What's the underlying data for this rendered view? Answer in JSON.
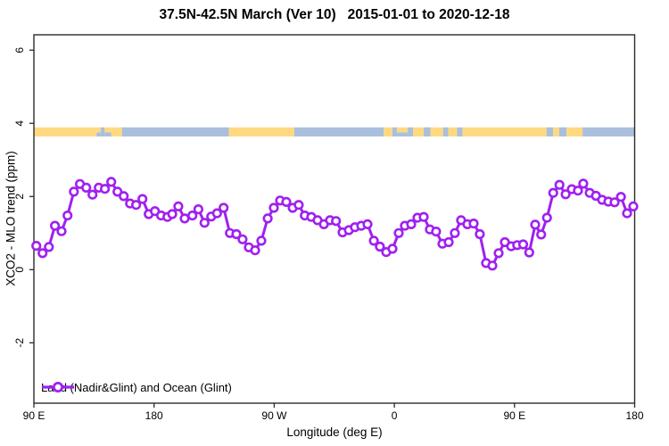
{
  "title": "37.5N-42.5N March (Ver 10)   2015-01-01 to 2020-12-18",
  "chart_data": {
    "type": "line",
    "title": "37.5N-42.5N March (Ver 10)   2015-01-01 to 2020-12-18",
    "xlabel": "Longitude (deg E)",
    "ylabel": "XCO2 - MLO trend (ppm)",
    "xlim": [
      90,
      540
    ],
    "ylim": [
      -3.65,
      6.42
    ],
    "grid": false,
    "legend_position": "bottom-left",
    "legend_label": "Land (Nadir&Glint) and Ocean (Glint)",
    "colors": {
      "series": "#A020F0",
      "marker_fill": "#ffffff",
      "land": "#FFD980",
      "ocean": "#A9BFDC",
      "frame": "#2b2b2b",
      "text": "#000000"
    },
    "x_ticks": [
      {
        "lon": 90,
        "label": "90 E"
      },
      {
        "lon": 180,
        "label": "180"
      },
      {
        "lon": 270,
        "label": "90 W"
      },
      {
        "lon": 360,
        "label": "0"
      },
      {
        "lon": 450,
        "label": "90 E"
      },
      {
        "lon": 540,
        "label": "180"
      }
    ],
    "y_ticks": [
      {
        "value": -2,
        "label": "-2"
      },
      {
        "value": 0,
        "label": "0"
      },
      {
        "value": 2,
        "label": "2"
      },
      {
        "value": 4,
        "label": "4"
      },
      {
        "value": 6,
        "label": "6"
      }
    ],
    "map_band": {
      "value_range": [
        3.64,
        3.89
      ],
      "segments": [
        [
          90,
          137,
          "land"
        ],
        [
          137,
          140,
          "mix"
        ],
        [
          140,
          143,
          "ocean"
        ],
        [
          143,
          148,
          "mix"
        ],
        [
          148,
          156,
          "land"
        ],
        [
          156,
          236,
          "ocean"
        ],
        [
          236,
          285,
          "land"
        ],
        [
          285,
          352,
          "ocean"
        ],
        [
          352,
          358.5,
          "land"
        ],
        [
          358.5,
          362,
          "ocean"
        ],
        [
          362,
          370,
          "mix"
        ],
        [
          370,
          374,
          "ocean"
        ],
        [
          374,
          382,
          "land"
        ],
        [
          382,
          387,
          "ocean"
        ],
        [
          387,
          396.5,
          "land"
        ],
        [
          396.5,
          400.5,
          "ocean"
        ],
        [
          400.5,
          407,
          "land"
        ],
        [
          407,
          411,
          "ocean"
        ],
        [
          411,
          474,
          "land"
        ],
        [
          474,
          479,
          "ocean"
        ],
        [
          479,
          483.5,
          "land"
        ],
        [
          483.5,
          489,
          "ocean"
        ],
        [
          489,
          501,
          "land"
        ],
        [
          501,
          540,
          "ocean"
        ]
      ]
    },
    "series": [
      {
        "name": "Land (Nadir&Glint) and Ocean (Glint)",
        "points": [
          [
            91.8,
            0.65
          ],
          [
            96.5,
            0.45
          ],
          [
            101.2,
            0.62
          ],
          [
            105.8,
            1.2
          ],
          [
            110.7,
            1.05
          ],
          [
            115.2,
            1.48
          ],
          [
            119.9,
            2.13
          ],
          [
            124.5,
            2.34
          ],
          [
            129.2,
            2.24
          ],
          [
            133.9,
            2.05
          ],
          [
            138.6,
            2.24
          ],
          [
            143.2,
            2.21
          ],
          [
            147.9,
            2.4
          ],
          [
            152.6,
            2.13
          ],
          [
            157.3,
            2.01
          ],
          [
            162.0,
            1.81
          ],
          [
            166.6,
            1.77
          ],
          [
            171.3,
            1.93
          ],
          [
            176.0,
            1.52
          ],
          [
            180.7,
            1.6
          ],
          [
            185.3,
            1.48
          ],
          [
            190.0,
            1.44
          ],
          [
            193.6,
            1.52
          ],
          [
            198.2,
            1.73
          ],
          [
            202.9,
            1.4
          ],
          [
            208.7,
            1.48
          ],
          [
            213.2,
            1.65
          ],
          [
            217.8,
            1.28
          ],
          [
            222.8,
            1.45
          ],
          [
            227.2,
            1.54
          ],
          [
            232.1,
            1.69
          ],
          [
            236.8,
            1.0
          ],
          [
            241.7,
            0.97
          ],
          [
            246.3,
            0.83
          ],
          [
            251.0,
            0.61
          ],
          [
            255.7,
            0.53
          ],
          [
            260.4,
            0.79
          ],
          [
            265.1,
            1.4
          ],
          [
            269.7,
            1.69
          ],
          [
            274.4,
            1.89
          ],
          [
            279.1,
            1.85
          ],
          [
            283.8,
            1.69
          ],
          [
            288.4,
            1.77
          ],
          [
            292.9,
            1.48
          ],
          [
            297.8,
            1.44
          ],
          [
            302.5,
            1.35
          ],
          [
            307.2,
            1.24
          ],
          [
            311.8,
            1.35
          ],
          [
            316.3,
            1.33
          ],
          [
            321.2,
            1.02
          ],
          [
            325.9,
            1.08
          ],
          [
            330.5,
            1.16
          ],
          [
            335.2,
            1.2
          ],
          [
            339.9,
            1.24
          ],
          [
            344.6,
            0.79
          ],
          [
            349.2,
            0.63
          ],
          [
            353.9,
            0.48
          ],
          [
            358.6,
            0.57
          ],
          [
            363.3,
            1.0
          ],
          [
            367.9,
            1.2
          ],
          [
            372.6,
            1.24
          ],
          [
            377.3,
            1.42
          ],
          [
            382.0,
            1.44
          ],
          [
            386.6,
            1.1
          ],
          [
            391.3,
            1.04
          ],
          [
            396.0,
            0.71
          ],
          [
            400.7,
            0.75
          ],
          [
            405.3,
            1.0
          ],
          [
            410.0,
            1.35
          ],
          [
            414.7,
            1.24
          ],
          [
            419.4,
            1.26
          ],
          [
            424.0,
            0.97
          ],
          [
            428.7,
            0.18
          ],
          [
            433.4,
            0.11
          ],
          [
            438.1,
            0.45
          ],
          [
            442.8,
            0.75
          ],
          [
            447.5,
            0.64
          ],
          [
            452.0,
            0.67
          ],
          [
            456.5,
            0.69
          ],
          [
            461.0,
            0.47
          ],
          [
            465.5,
            1.23
          ],
          [
            470.0,
            0.96
          ],
          [
            474.3,
            1.42
          ],
          [
            479.0,
            2.1
          ],
          [
            483.7,
            2.32
          ],
          [
            488.3,
            2.06
          ],
          [
            492.9,
            2.2
          ],
          [
            497.5,
            2.16
          ],
          [
            501.5,
            2.35
          ],
          [
            506.3,
            2.1
          ],
          [
            511.0,
            2.02
          ],
          [
            515.6,
            1.91
          ],
          [
            520.3,
            1.86
          ],
          [
            525.0,
            1.84
          ],
          [
            529.7,
            1.99
          ],
          [
            534.3,
            1.54
          ],
          [
            539.0,
            1.73
          ]
        ]
      }
    ]
  }
}
